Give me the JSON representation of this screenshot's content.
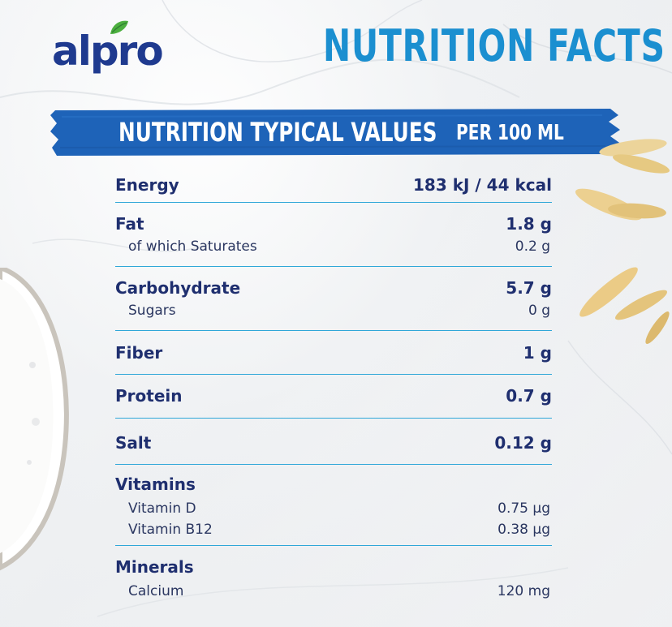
{
  "brand": {
    "name": "alpro",
    "leaf_color": "#4caf3f",
    "text_color": "#1f3a8f"
  },
  "title": "NUTRITION FACTS",
  "header": {
    "left": "NUTRITION TYPICAL VALUES",
    "right": "PER 100 ML",
    "band_color": "#1e63b8"
  },
  "colors": {
    "title": "#1b8fd0",
    "text": "#1f2f6f",
    "divider": "#2fa7d8"
  },
  "rows": [
    {
      "label": "Energy",
      "value": "183 kJ / 44 kcal",
      "subs": []
    },
    {
      "label": "Fat",
      "value": "1.8 g",
      "subs": [
        {
          "label": "of which Saturates",
          "value": "0.2 g"
        }
      ]
    },
    {
      "label": "Carbohydrate",
      "value": "5.7 g",
      "subs": [
        {
          "label": "Sugars",
          "value": "0 g"
        }
      ]
    },
    {
      "label": "Fiber",
      "value": "1 g",
      "subs": []
    },
    {
      "label": "Protein",
      "value": "0.7 g",
      "subs": []
    },
    {
      "label": "Salt",
      "value": "0.12 g",
      "subs": []
    },
    {
      "label": "Vitamins",
      "value": "",
      "subs": [
        {
          "label": "Vitamin D",
          "value": "0.75 µg"
        },
        {
          "label": "Vitamin B12",
          "value": "0.38 µg"
        }
      ]
    },
    {
      "label": "Minerals",
      "value": "",
      "subs": [
        {
          "label": "Calcium",
          "value": "120 mg"
        }
      ]
    }
  ]
}
